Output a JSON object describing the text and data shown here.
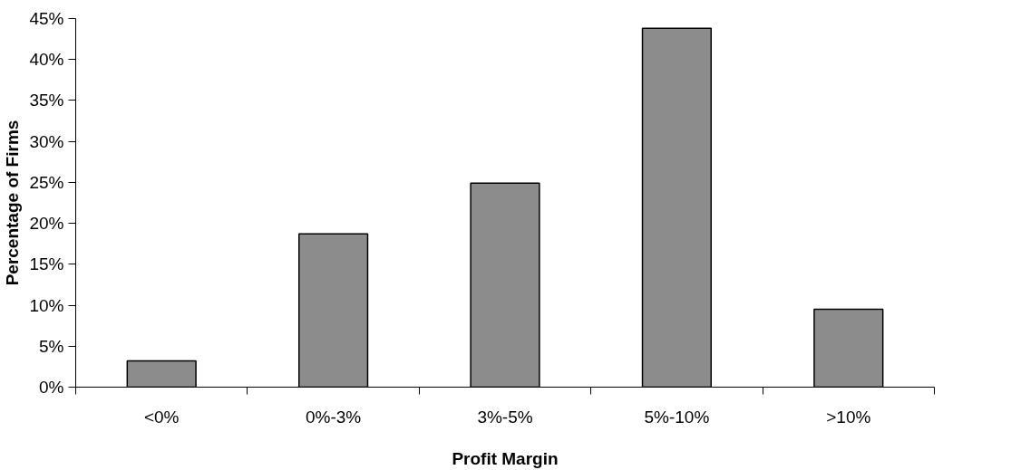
{
  "chart_data": {
    "type": "bar",
    "xlabel": "Profit Margin",
    "ylabel": "Percentage of Firms",
    "categories": [
      "<0%",
      "0%-3%",
      "3%-5%",
      "5%-10%",
      ">10%"
    ],
    "values": [
      3.2,
      18.7,
      24.9,
      43.8,
      9.5
    ],
    "color": "#8c8c8c",
    "ylim": [
      0,
      45
    ],
    "yticks": [
      {
        "value": 0,
        "label": "0%"
      },
      {
        "value": 5,
        "label": "5%"
      },
      {
        "value": 10,
        "label": "10%"
      },
      {
        "value": 15,
        "label": "15%"
      },
      {
        "value": 20,
        "label": "20%"
      },
      {
        "value": 25,
        "label": "25%"
      },
      {
        "value": 30,
        "label": "30%"
      },
      {
        "value": 35,
        "label": "35%"
      },
      {
        "value": 40,
        "label": "40%"
      },
      {
        "value": 45,
        "label": "45%"
      }
    ],
    "grid": false
  }
}
